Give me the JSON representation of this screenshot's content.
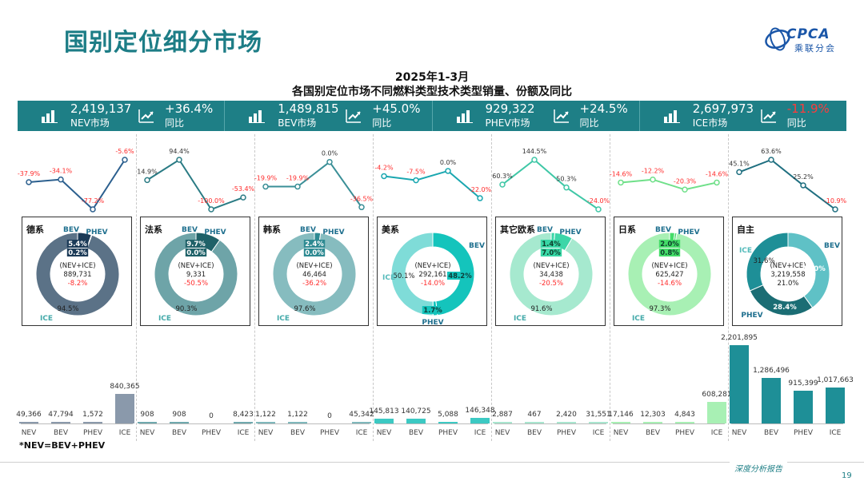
{
  "page": {
    "title": "国别定位细分市场",
    "logo_text": "CPCA",
    "logo_cn": "乘联分会",
    "footnote": "*NEV=BEV+PHEV",
    "footer_tag": "深度分析报告",
    "page_number": "19",
    "colors": {
      "teal": "#1e7f86",
      "neg": "#ff2a2a"
    }
  },
  "chart_data": {
    "type": "bar",
    "title": "2025年1-3月",
    "subtitle": "各国别定位市场不同燃料类型技术类型销量、份额及同比",
    "kpis": [
      {
        "value": "2,419,137",
        "label": "NEV市场",
        "yoy": "+36.4%",
        "yoy_label": "同比",
        "negative": false
      },
      {
        "value": "1,489,815",
        "label": "BEV市场",
        "yoy": "+45.0%",
        "yoy_label": "同比",
        "negative": false
      },
      {
        "value": "929,322",
        "label": "PHEV市场",
        "yoy": "+24.5%",
        "yoy_label": "同比",
        "negative": false
      },
      {
        "value": "2,697,973",
        "label": "ICE市场",
        "yoy": "-11.9%",
        "yoy_label": "同比",
        "negative": true
      }
    ],
    "categories": [
      "NEV",
      "BEV",
      "PHEV",
      "ICE"
    ],
    "y_max": 2201895,
    "groups": [
      {
        "name": "德系",
        "bar_color": "#8a99ab",
        "line_color": "#2b5f8e",
        "donut_main": "#5b7287",
        "donut_light": "#1b3a57",
        "yoy": [
          -37.9,
          -34.1,
          -77.2,
          -5.6
        ],
        "yoy_labels": [
          "-37.9%",
          "-34.1%",
          "-77.2%",
          "-5.6%"
        ],
        "sales": [
          49366,
          47794,
          1572,
          840365
        ],
        "sales_labels": [
          "49,366",
          "47,794",
          "1,572",
          "840,365"
        ],
        "share": {
          "bev": 5.4,
          "phev": 0.2,
          "ice": 94.5
        },
        "share_labels": {
          "bev": "5.4%",
          "phev": "0.2%",
          "ice": "94.5%"
        },
        "center": {
          "title": "(NEV+ICE)",
          "total": "889,731",
          "yoy": "-8.2%"
        },
        "legend": {
          "bev": "BEV",
          "phev": "PHEV",
          "ice": "ICE"
        }
      },
      {
        "name": "法系",
        "bar_color": "#6fa9ad",
        "line_color": "#2a7b84",
        "donut_main": "#6ea4a8",
        "donut_light": "#1f6168",
        "yoy": [
          14.9,
          94.4,
          -100.0,
          -53.4
        ],
        "yoy_labels": [
          "14.9%",
          "94.4%",
          "-100.0%",
          "-53.4%"
        ],
        "sales": [
          908,
          908,
          0,
          8423
        ],
        "sales_labels": [
          "908",
          "908",
          "0",
          "8,423"
        ],
        "share": {
          "bev": 9.7,
          "phev": 0.0,
          "ice": 90.3
        },
        "share_labels": {
          "bev": "9.7%",
          "phev": "0.0%",
          "ice": "90.3%"
        },
        "center": {
          "title": "(NEV+ICE)",
          "total": "9,331",
          "yoy": "-50.5%"
        },
        "legend": {
          "bev": "BEV",
          "phev": "PHEV",
          "ice": "ICE"
        }
      },
      {
        "name": "韩系",
        "bar_color": "#7fb8bb",
        "line_color": "#3a8f97",
        "donut_main": "#86bcbf",
        "donut_light": "#2e8a92",
        "yoy": [
          -19.9,
          -19.9,
          0.0,
          -36.5
        ],
        "yoy_labels": [
          "-19.9%",
          "-19.9%",
          "0.0%",
          "-36.5%"
        ],
        "sales": [
          1122,
          1122,
          0,
          45342
        ],
        "sales_labels": [
          "1,122",
          "1,122",
          "0",
          "45,342"
        ],
        "share": {
          "bev": 2.4,
          "phev": 0.0,
          "ice": 97.6
        },
        "share_labels": {
          "bev": "2.4%",
          "phev": "0.0%",
          "ice": "97.6%"
        },
        "center": {
          "title": "(NEV+ICE)",
          "total": "46,464",
          "yoy": "-36.2%"
        },
        "legend": {
          "bev": "BEV",
          "phev": "PHEV",
          "ice": "ICE"
        }
      },
      {
        "name": "美系",
        "bar_color": "#3cc9c3",
        "line_color": "#1aa7b0",
        "donut_main": "#7fdcd8",
        "donut_light": "#14c4bc",
        "yoy": [
          -4.2,
          -7.5,
          0.0,
          -22.0
        ],
        "yoy_labels": [
          "-4.2%",
          "-7.5%",
          "0.0%",
          "-22.0%"
        ],
        "sales": [
          145813,
          140725,
          5088,
          146348
        ],
        "sales_labels": [
          "145,813",
          "140,725",
          "5,088",
          "146,348"
        ],
        "share": {
          "bev": 48.2,
          "phev": 1.7,
          "ice": 50.1
        },
        "share_labels": {
          "bev": "48.2%",
          "phev": "1.7%",
          "ice": "50.1%"
        },
        "center": {
          "title": "(NEV+ICE)",
          "total": "292,161",
          "yoy": "-14.0%"
        },
        "legend": {
          "bev": "BEV",
          "phev": "PHEV",
          "ice": "ICE"
        }
      },
      {
        "name": "其它欧系",
        "bar_color": "#a9e6cf",
        "line_color": "#3fc7a6",
        "donut_main": "#a6e9cf",
        "donut_light": "#3cd6a8",
        "yoy": [
          60.3,
          144.5,
          50.3,
          -24.0
        ],
        "yoy_labels": [
          "60.3%",
          "144.5%",
          "50.3%",
          "-24.0%"
        ],
        "sales": [
          2887,
          467,
          2420,
          31551
        ],
        "sales_labels": [
          "2,887",
          "467",
          "2,420",
          "31,551"
        ],
        "share": {
          "bev": 1.4,
          "phev": 7.0,
          "ice": 91.6
        },
        "share_labels": {
          "bev": "1.4%",
          "phev": "7.0%",
          "ice": "91.6%"
        },
        "center": {
          "title": "(NEV+ICE)",
          "total": "34,438",
          "yoy": "-20.5%"
        },
        "legend": {
          "bev": "BEV",
          "phev": "PHEV",
          "ice": "ICE"
        }
      },
      {
        "name": "日系",
        "bar_color": "#a8f0b4",
        "line_color": "#6fe089",
        "donut_main": "#a8f0b4",
        "donut_light": "#44dc68",
        "yoy": [
          -14.6,
          -12.2,
          -20.3,
          -14.6
        ],
        "yoy_labels": [
          "-14.6%",
          "-12.2%",
          "-20.3%",
          "-14.6%"
        ],
        "sales": [
          17146,
          12303,
          4843,
          608281
        ],
        "sales_labels": [
          "17,146",
          "12,303",
          "4,843",
          "608,281"
        ],
        "share": {
          "bev": 2.0,
          "phev": 0.8,
          "ice": 97.3
        },
        "share_labels": {
          "bev": "2.0%",
          "phev": "0.8%",
          "ice": "97.3%"
        },
        "center": {
          "title": "(NEV+ICE)",
          "total": "625,427",
          "yoy": "-14.6%"
        },
        "legend": {
          "bev": "BEV",
          "phev": "PHEV",
          "ice": "ICE"
        }
      },
      {
        "name": "自主",
        "bar_color": "#1e8f97",
        "line_color": "#1f6f80",
        "donut_main": "#1e8f97",
        "donut_light": "#5fc1c6",
        "yoy": [
          45.1,
          63.6,
          25.2,
          -10.9
        ],
        "yoy_labels": [
          "45.1%",
          "63.6%",
          "25.2%",
          "-10.9%"
        ],
        "sales": [
          2201895,
          1286496,
          915399,
          1017663
        ],
        "sales_labels": [
          "2,201,895",
          "1,286,496",
          "915,399",
          "1,017,663"
        ],
        "share": {
          "bev": 40.0,
          "phev": 28.4,
          "ice": 31.6
        },
        "share_labels": {
          "bev": "40.0%",
          "phev": "28.4%",
          "ice": "31.6%"
        },
        "center": {
          "title": "(NEV+ICE)",
          "total": "3,219,558",
          "yoy": "21.0%"
        },
        "legend": {
          "bev": "BEV",
          "phev": "PHEV",
          "ice": "ICE"
        }
      }
    ]
  }
}
